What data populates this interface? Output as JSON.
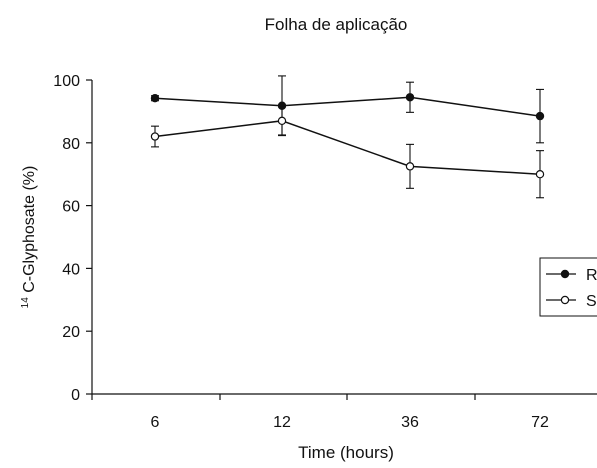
{
  "chart_data": {
    "type": "line",
    "title": "Folha de aplicação",
    "xlabel": "Time (hours)",
    "ylabel_superscript": "14",
    "ylabel": " C-Glyphosate (%)",
    "categories": [
      "6",
      "12",
      "36",
      "72"
    ],
    "ylim": [
      0,
      100
    ],
    "yticks": [
      0,
      20,
      40,
      60,
      80,
      100
    ],
    "grid": false,
    "legend_position": "right",
    "series": [
      {
        "name": "R",
        "marker": "filled-circle",
        "color": "#111111",
        "values": [
          94.2,
          91.8,
          94.5,
          88.5
        ],
        "errors": [
          0.8,
          9.5,
          4.8,
          8.5
        ]
      },
      {
        "name": "S",
        "marker": "open-circle",
        "color": "#111111",
        "values": [
          82.0,
          87.0,
          72.5,
          70.0
        ],
        "errors": [
          3.3,
          4.5,
          7.0,
          7.5
        ]
      }
    ]
  }
}
